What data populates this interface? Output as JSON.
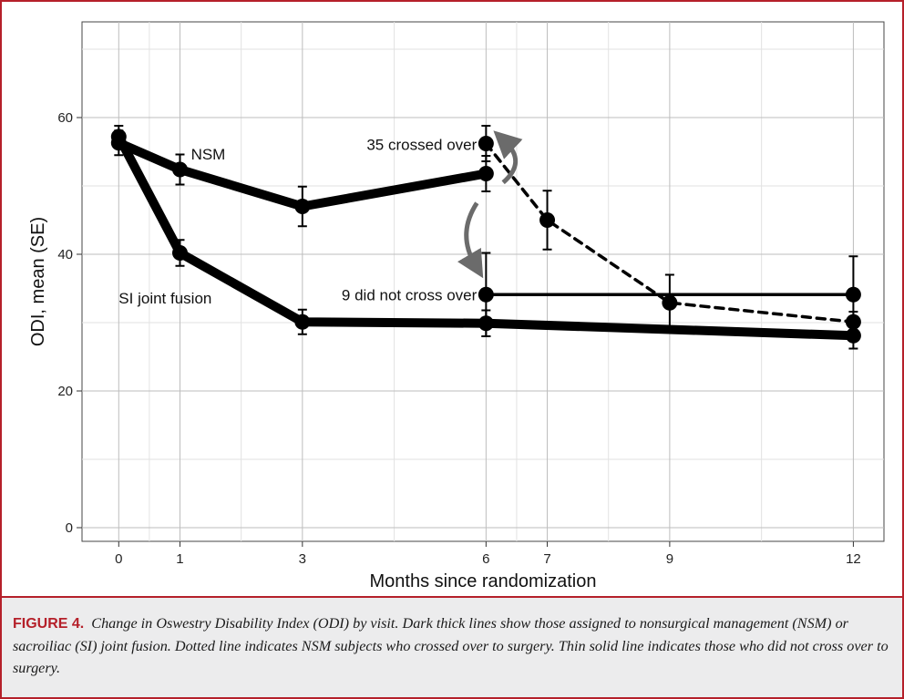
{
  "chart_data": {
    "type": "line",
    "xlabel": "Months since randomization",
    "ylabel": "ODI, mean (SE)",
    "xlim": [
      -0.6,
      12.5
    ],
    "ylim": [
      -2,
      74
    ],
    "x_ticks": [
      0,
      1,
      3,
      6,
      7,
      9,
      12
    ],
    "y_ticks": [
      0,
      20,
      40,
      60
    ],
    "grid": true,
    "series": [
      {
        "name": "NSM",
        "style": "thick",
        "points": [
          {
            "x": 0,
            "y": 56.3,
            "err": 1.8
          },
          {
            "x": 1,
            "y": 52.4,
            "err": 2.2
          },
          {
            "x": 3,
            "y": 47.0,
            "err": 2.9
          },
          {
            "x": 6,
            "y": 51.8,
            "err": 2.6
          }
        ]
      },
      {
        "name": "SI joint fusion",
        "style": "thick",
        "points": [
          {
            "x": 0,
            "y": 57.2,
            "err": 1.6
          },
          {
            "x": 1,
            "y": 40.2,
            "err": 1.9
          },
          {
            "x": 3,
            "y": 30.1,
            "err": 1.8
          },
          {
            "x": 6,
            "y": 29.9,
            "err": 1.9
          },
          {
            "x": 12,
            "y": 28.1,
            "err": 1.9
          }
        ]
      },
      {
        "name": "35 crossed over",
        "style": "dashed",
        "points": [
          {
            "x": 6,
            "y": 56.2,
            "err": 2.6
          },
          {
            "x": 7,
            "y": 45.0,
            "err": 4.3
          },
          {
            "x": 9,
            "y": 32.9,
            "err": 4.1
          },
          {
            "x": 12,
            "y": 30.1,
            "err": 1.5
          }
        ]
      },
      {
        "name": "9 did not cross over",
        "style": "thin",
        "points": [
          {
            "x": 6,
            "y": 34.1,
            "err": 6.1
          },
          {
            "x": 12,
            "y": 34.1,
            "err": 5.6
          }
        ]
      }
    ],
    "annotations": [
      {
        "text": "NSM",
        "x": 1.18,
        "y": 54.7
      },
      {
        "text": "SI joint fusion",
        "x": 0.0,
        "y": 33.6
      },
      {
        "text": "35 crossed over",
        "x": 5.85,
        "y": 56.1
      },
      {
        "text": "9 did not cross over",
        "x": 5.85,
        "y": 34.1
      }
    ],
    "colors": {
      "lines": "#000000",
      "arrows": "#6b6b6b",
      "grid": "#bdbdbd",
      "border": "#b5202a"
    }
  },
  "caption": {
    "label": "FIGURE 4.",
    "text": "Change in Oswestry Disability Index (ODI) by visit. Dark thick lines show those assigned to nonsurgical management (NSM) or sacroiliac (SI) joint fusion. Dotted line indicates NSM subjects who crossed over to surgery. Thin solid line indicates those who did not cross over to surgery."
  }
}
